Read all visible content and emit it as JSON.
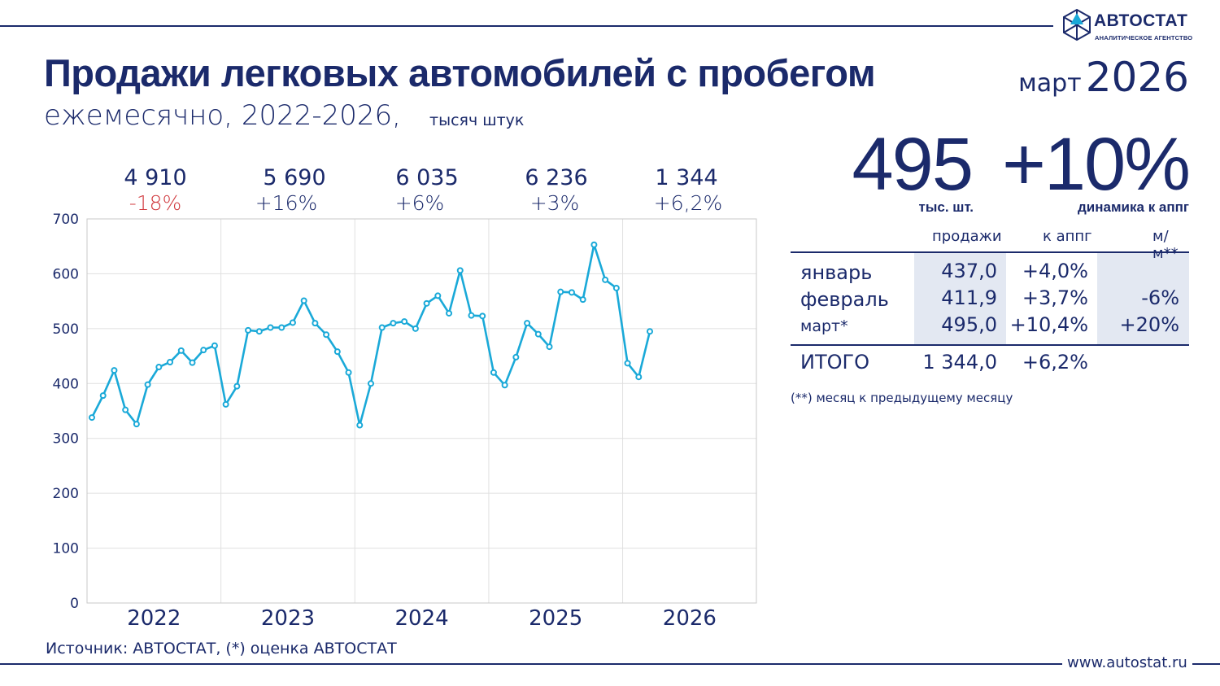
{
  "brand": {
    "name": "АВТОСТАТ",
    "tagline": "АНАЛИТИЧЕСКОЕ АГЕНТСТВО",
    "site": "www.autostat.ru"
  },
  "header": {
    "title": "Продажи легковых автомобилей с пробегом",
    "subtitle": "ежемесячно, 2022-2026,",
    "units": "тысяч штук",
    "period_month": "март",
    "period_year": "2026"
  },
  "kpi": {
    "value": "495",
    "value_caption": "тыс. шт.",
    "change": "+10%",
    "change_caption": "динамика к аппг"
  },
  "year_totals": [
    {
      "year": "2022",
      "total": "4 910",
      "change": "-18%",
      "negative": true
    },
    {
      "year": "2023",
      "total": "5 690",
      "change": "+16%",
      "negative": false
    },
    {
      "year": "2024",
      "total": "6 035",
      "change": "+6%",
      "negative": false
    },
    {
      "year": "2025",
      "total": "6 236",
      "change": "+3%",
      "negative": false
    },
    {
      "year": "2026",
      "total": "1 344",
      "change": "+6,2%",
      "negative": false
    }
  ],
  "table": {
    "headers": [
      "продажи",
      "к аппг",
      "м/м**"
    ],
    "rows": [
      {
        "month": "январь",
        "sales": "437,0",
        "yoy": "+4,0%",
        "mom": ""
      },
      {
        "month": "февраль",
        "sales": "411,9",
        "yoy": "+3,7%",
        "mom": "-6%"
      },
      {
        "month": "март*",
        "sales": "495,0",
        "yoy": "+10,4%",
        "mom": "+20%"
      }
    ],
    "total": {
      "label": "ИТОГО",
      "sales": "1 344,0",
      "yoy": "+6,2%"
    },
    "note": "(**) месяц к предыдущему месяцу"
  },
  "source": "Источник: АВТОСТАТ, (*) оценка АВТОСТАТ",
  "colors": {
    "navy": "#1b2a6b",
    "line": "#1aa9d8",
    "negative": "#d0393e",
    "grid": "#e0e0e0",
    "shade": "#e3e8f2"
  },
  "chart_data": {
    "type": "line",
    "title": "Продажи легковых автомобилей с пробегом",
    "ylabel": "тысяч штук",
    "ylim": [
      0,
      700
    ],
    "yticks": [
      0,
      100,
      200,
      300,
      400,
      500,
      600,
      700
    ],
    "year_labels": [
      "2022",
      "2023",
      "2024",
      "2025",
      "2026"
    ],
    "series": [
      {
        "name": "Продажи, тыс. шт.",
        "x": [
          "2022-01",
          "2022-02",
          "2022-03",
          "2022-04",
          "2022-05",
          "2022-06",
          "2022-07",
          "2022-08",
          "2022-09",
          "2022-10",
          "2022-11",
          "2022-12",
          "2023-01",
          "2023-02",
          "2023-03",
          "2023-04",
          "2023-05",
          "2023-06",
          "2023-07",
          "2023-08",
          "2023-09",
          "2023-10",
          "2023-11",
          "2023-12",
          "2024-01",
          "2024-02",
          "2024-03",
          "2024-04",
          "2024-05",
          "2024-06",
          "2024-07",
          "2024-08",
          "2024-09",
          "2024-10",
          "2024-11",
          "2024-12",
          "2025-01",
          "2025-02",
          "2025-03",
          "2025-04",
          "2025-05",
          "2025-06",
          "2025-07",
          "2025-08",
          "2025-09",
          "2025-10",
          "2025-11",
          "2025-12",
          "2026-01",
          "2026-02",
          "2026-03"
        ],
        "values": [
          338,
          378,
          424,
          352,
          326,
          398,
          430,
          439,
          460,
          438,
          461,
          469,
          362,
          395,
          497,
          495,
          502,
          502,
          511,
          551,
          510,
          489,
          458,
          420,
          324,
          400,
          502,
          510,
          513,
          500,
          546,
          560,
          528,
          606,
          524,
          523,
          420,
          397,
          448,
          510,
          490,
          467,
          567,
          566,
          553,
          653,
          589,
          574,
          437,
          412,
          495
        ]
      }
    ]
  }
}
